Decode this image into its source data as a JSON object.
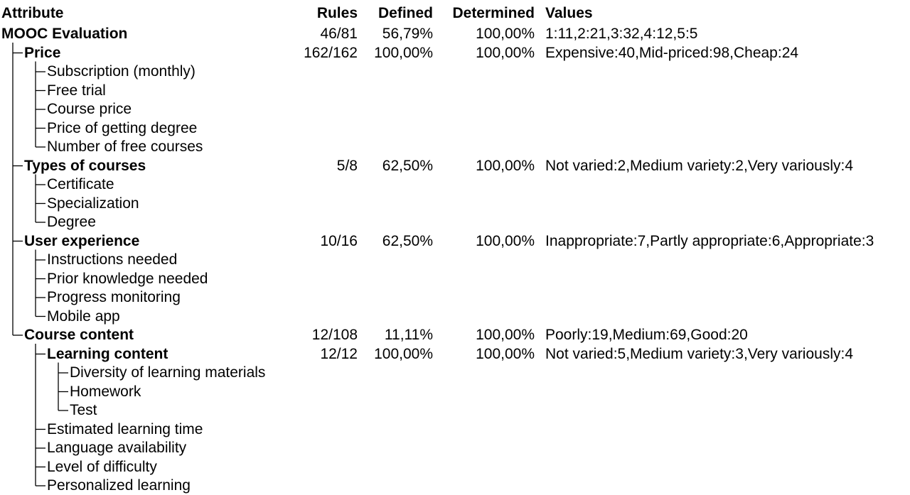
{
  "header": [
    "Attribute",
    "Rules",
    "Defined",
    "Determined",
    "Values"
  ],
  "tree": {
    "label": "MOOC Evaluation",
    "rules": "46/81",
    "defined": "56,79%",
    "determined": "100,00%",
    "values": "1:11,2:21,3:32,4:12,5:5",
    "children": [
      {
        "label": "Price",
        "rules": "162/162",
        "defined": "100,00%",
        "determined": "100,00%",
        "values": "Expensive:40,Mid-priced:98,Cheap:24",
        "children": [
          {
            "label": "Subscription (monthly)"
          },
          {
            "label": "Free trial"
          },
          {
            "label": "Course price"
          },
          {
            "label": "Price of getting degree"
          },
          {
            "label": "Number of free courses"
          }
        ]
      },
      {
        "label": "Types of courses",
        "rules": "5/8",
        "defined": "62,50%",
        "determined": "100,00%",
        "values": "Not varied:2,Medium variety:2,Very variously:4",
        "children": [
          {
            "label": "Certificate"
          },
          {
            "label": "Specialization"
          },
          {
            "label": "Degree"
          }
        ]
      },
      {
        "label": "User experience",
        "rules": "10/16",
        "defined": "62,50%",
        "determined": "100,00%",
        "values": "Inappropriate:7,Partly appropriate:6,Appropriate:3",
        "children": [
          {
            "label": "Instructions needed"
          },
          {
            "label": "Prior knowledge needed"
          },
          {
            "label": "Progress monitoring"
          },
          {
            "label": "Mobile app"
          }
        ]
      },
      {
        "label": "Course content",
        "rules": "12/108",
        "defined": "11,11%",
        "determined": "100,00%",
        "values": "Poorly:19,Medium:69,Good:20",
        "children": [
          {
            "label": "Learning content",
            "rules": "12/12",
            "defined": "100,00%",
            "determined": "100,00%",
            "values": "Not varied:5,Medium variety:3,Very variously:4",
            "children": [
              {
                "label": "Diversity of learning materials"
              },
              {
                "label": "Homework"
              },
              {
                "label": "Test"
              }
            ]
          },
          {
            "label": "Estimated learning time"
          },
          {
            "label": "Language availability"
          },
          {
            "label": "Level of difficulty"
          },
          {
            "label": "Personalized learning"
          }
        ]
      }
    ]
  }
}
